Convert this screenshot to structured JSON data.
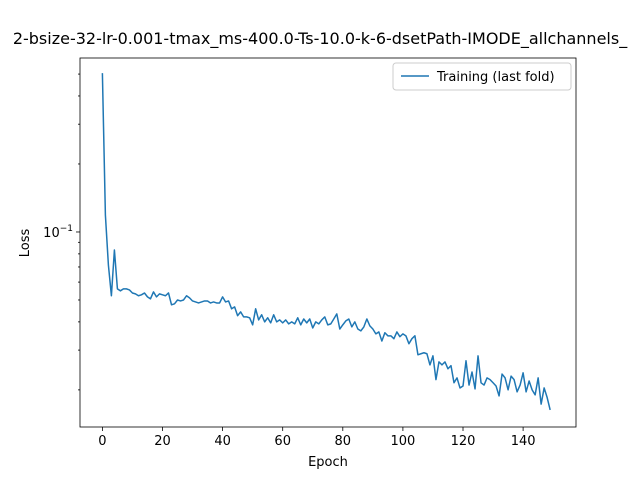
{
  "chart_data": {
    "type": "line",
    "title": "2-bsize-32-lr-0.001-tmax_ms-400.0-Ts-10.0-k-6-dsetPath-IMODE_allchannels_",
    "x_label": "Epoch",
    "y_label": "Loss",
    "x": [
      0,
      1,
      2,
      3,
      4,
      5,
      6,
      7,
      8,
      9,
      10,
      11,
      12,
      13,
      14,
      15,
      16,
      17,
      18,
      19,
      20,
      21,
      22,
      23,
      24,
      25,
      26,
      27,
      28,
      29,
      30,
      31,
      32,
      33,
      34,
      35,
      36,
      37,
      38,
      39,
      40,
      41,
      42,
      43,
      44,
      45,
      46,
      47,
      48,
      49,
      50,
      51,
      52,
      53,
      54,
      55,
      56,
      57,
      58,
      59,
      60,
      61,
      62,
      63,
      64,
      65,
      66,
      67,
      68,
      69,
      70,
      71,
      72,
      73,
      74,
      75,
      76,
      77,
      78,
      79,
      80,
      81,
      82,
      83,
      84,
      85,
      86,
      87,
      88,
      89,
      90,
      91,
      92,
      93,
      94,
      95,
      96,
      97,
      98,
      99,
      100,
      101,
      102,
      103,
      104,
      105,
      106,
      107,
      108,
      109,
      110,
      111,
      112,
      113,
      114,
      115,
      116,
      117,
      118,
      119,
      120,
      121,
      122,
      123,
      124,
      125,
      126,
      127,
      128,
      129,
      130,
      131,
      132,
      133,
      134,
      135,
      136,
      137,
      138,
      139,
      140,
      141,
      142,
      143,
      144,
      145,
      146,
      147,
      148,
      149
    ],
    "series": [
      {
        "name": "Training (last fold)",
        "color": "#1f77b4",
        "values": [
          0.505,
          0.119,
          0.0714,
          0.0522,
          0.0832,
          0.056,
          0.0549,
          0.056,
          0.056,
          0.0554,
          0.0537,
          0.0532,
          0.0522,
          0.0527,
          0.0537,
          0.0516,
          0.0506,
          0.0543,
          0.0516,
          0.0532,
          0.0527,
          0.0522,
          0.0537,
          0.0476,
          0.0481,
          0.05,
          0.0495,
          0.05,
          0.0522,
          0.0511,
          0.0495,
          0.049,
          0.0485,
          0.049,
          0.0495,
          0.0495,
          0.0485,
          0.049,
          0.0485,
          0.0485,
          0.0516,
          0.049,
          0.0495,
          0.0457,
          0.0466,
          0.0426,
          0.0443,
          0.0421,
          0.0421,
          0.0417,
          0.0388,
          0.0457,
          0.0408,
          0.043,
          0.04,
          0.0417,
          0.0396,
          0.043,
          0.04,
          0.0408,
          0.0396,
          0.0408,
          0.0392,
          0.04,
          0.0392,
          0.0417,
          0.0388,
          0.0412,
          0.0396,
          0.0412,
          0.0376,
          0.04,
          0.0392,
          0.0408,
          0.0421,
          0.0388,
          0.0392,
          0.0412,
          0.0434,
          0.0372,
          0.0388,
          0.0404,
          0.0412,
          0.038,
          0.04,
          0.0372,
          0.0365,
          0.038,
          0.0412,
          0.0384,
          0.0372,
          0.0354,
          0.0361,
          0.0329,
          0.0358,
          0.0347,
          0.0347,
          0.0337,
          0.0361,
          0.0344,
          0.0354,
          0.0347,
          0.032,
          0.0337,
          0.0347,
          0.0286,
          0.0289,
          0.0292,
          0.0289,
          0.0258,
          0.0283,
          0.0222,
          0.0266,
          0.0258,
          0.0266,
          0.0248,
          0.0256,
          0.0215,
          0.0226,
          0.0204,
          0.0208,
          0.0269,
          0.021,
          0.024,
          0.0202,
          0.0283,
          0.0215,
          0.021,
          0.0226,
          0.0222,
          0.0215,
          0.0208,
          0.0188,
          0.0235,
          0.0226,
          0.02,
          0.023,
          0.0222,
          0.0196,
          0.021,
          0.0238,
          0.0196,
          0.0219,
          0.02,
          0.019,
          0.0226,
          0.0173,
          0.0204,
          0.0185,
          0.0163
        ]
      }
    ],
    "xlim": [
      -7.45,
      157.6
    ],
    "xticks": [
      0,
      20,
      40,
      60,
      80,
      100,
      120,
      140
    ],
    "ylim": [
      0.0137,
      0.589
    ],
    "yscale": "log",
    "yticks": [
      {
        "value": 0.1,
        "label": "10−1"
      }
    ],
    "yminorticks": [
      0.02,
      0.03,
      0.04,
      0.05,
      0.06,
      0.07,
      0.08,
      0.09,
      0.2,
      0.3,
      0.4,
      0.5
    ],
    "legend": "upper right",
    "grid": false
  }
}
